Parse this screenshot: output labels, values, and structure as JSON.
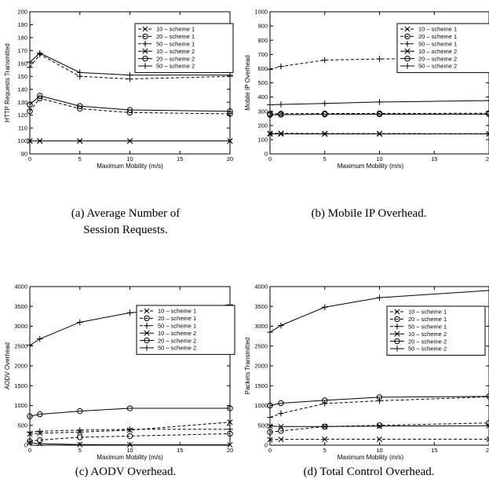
{
  "captions": [
    [
      "(a) Average Number of",
      "Session Requests."
    ],
    [
      "(b) Mobile IP Overhead."
    ],
    [
      "(c) AODV Overhead."
    ],
    [
      "(d) Total Control Overhead."
    ]
  ],
  "chart_data": [
    {
      "type": "line",
      "caption": "(a) Average Number of Session Requests.",
      "xlabel": "Maximum Mobility (m/s)",
      "ylabel": "HTTP Requests Transmitted",
      "xlim": [
        0,
        20
      ],
      "ylim": [
        90,
        200
      ],
      "xticks": [
        0,
        5,
        10,
        15,
        20
      ],
      "yticks": [
        90,
        100,
        110,
        120,
        130,
        140,
        150,
        160,
        170,
        180,
        190,
        200
      ],
      "legend_position": "top-right",
      "x": [
        0,
        1,
        5,
        10,
        20
      ],
      "series": [
        {
          "name": "10 – scheme 1",
          "marker": "x",
          "dash": "dashed",
          "values": [
            100,
            100,
            100,
            100,
            100
          ]
        },
        {
          "name": "20 – scheme 1",
          "marker": "o",
          "dash": "dashed",
          "values": [
            123,
            133,
            125,
            122,
            121
          ]
        },
        {
          "name": "50 – scheme 1",
          "marker": "+",
          "dash": "dashed",
          "values": [
            157,
            167,
            150,
            148,
            150
          ]
        },
        {
          "name": "10 – scheme 2",
          "marker": "x",
          "dash": "solid",
          "values": [
            100,
            100,
            100,
            100,
            100
          ]
        },
        {
          "name": "20 – scheme 2",
          "marker": "o",
          "dash": "solid",
          "values": [
            128,
            135,
            127,
            124,
            123
          ]
        },
        {
          "name": "50 – scheme 2",
          "marker": "+",
          "dash": "solid",
          "values": [
            161,
            168,
            153,
            151,
            151
          ]
        }
      ]
    },
    {
      "type": "line",
      "caption": "(b) Mobile IP Overhead.",
      "xlabel": "Maximum Mobility (m/s)",
      "ylabel": "Mobile IP Overhead",
      "xlim": [
        0,
        20
      ],
      "ylim": [
        0,
        1000
      ],
      "xticks": [
        0,
        5,
        10,
        15,
        20
      ],
      "yticks": [
        0,
        100,
        200,
        300,
        400,
        500,
        600,
        700,
        800,
        900,
        1000
      ],
      "legend_position": "top-right",
      "x": [
        0,
        1,
        5,
        10,
        20
      ],
      "series": [
        {
          "name": "10 – scheme 1",
          "marker": "x",
          "dash": "dashed",
          "values": [
            145,
            145,
            143,
            143,
            142
          ]
        },
        {
          "name": "20 – scheme 1",
          "marker": "o",
          "dash": "dashed",
          "values": [
            282,
            283,
            284,
            285,
            286
          ]
        },
        {
          "name": "50 – scheme 1",
          "marker": "+",
          "dash": "dashed",
          "values": [
            595,
            615,
            660,
            668,
            672
          ]
        },
        {
          "name": "10 – scheme 2",
          "marker": "x",
          "dash": "solid",
          "values": [
            140,
            140,
            140,
            140,
            140
          ]
        },
        {
          "name": "20 – scheme 2",
          "marker": "o",
          "dash": "solid",
          "values": [
            275,
            276,
            278,
            279,
            280
          ]
        },
        {
          "name": "50 – scheme 2",
          "marker": "+",
          "dash": "solid",
          "values": [
            345,
            348,
            355,
            365,
            375
          ]
        }
      ]
    },
    {
      "type": "line",
      "caption": "(c) AODV Overhead.",
      "xlabel": "Maximum Mobility (m/s)",
      "ylabel": "AODV Overhead",
      "xlim": [
        0,
        20
      ],
      "ylim": [
        0,
        4000
      ],
      "xticks": [
        0,
        5,
        10,
        15,
        20
      ],
      "yticks": [
        0,
        500,
        1000,
        1500,
        2000,
        2500,
        3000,
        3500,
        4000
      ],
      "legend_position": "right",
      "x": [
        0,
        1,
        5,
        10,
        20
      ],
      "series": [
        {
          "name": "10 – scheme 1",
          "marker": "x",
          "dash": "dashed",
          "values": [
            280,
            300,
            330,
            380,
            580
          ]
        },
        {
          "name": "20 – scheme 1",
          "marker": "o",
          "dash": "dashed",
          "values": [
            100,
            130,
            200,
            230,
            290
          ]
        },
        {
          "name": "50 – scheme 1",
          "marker": "+",
          "dash": "dashed",
          "values": [
            330,
            350,
            380,
            400,
            400
          ]
        },
        {
          "name": "10 – scheme 2",
          "marker": "x",
          "dash": "solid",
          "values": [
            60,
            40,
            15,
            10,
            10
          ]
        },
        {
          "name": "20 – scheme 2",
          "marker": "o",
          "dash": "solid",
          "values": [
            730,
            780,
            860,
            930,
            930
          ]
        },
        {
          "name": "50 – scheme 2",
          "marker": "+",
          "dash": "solid",
          "values": [
            2520,
            2680,
            3100,
            3340,
            3540
          ]
        }
      ]
    },
    {
      "type": "line",
      "caption": "(d) Total Control Overhead.",
      "xlabel": "Maximum Mobility (m/s)",
      "ylabel": "Packets Transmitted",
      "xlim": [
        0,
        20
      ],
      "ylim": [
        0,
        4000
      ],
      "xticks": [
        0,
        5,
        10,
        15,
        20
      ],
      "yticks": [
        0,
        500,
        1000,
        1500,
        2000,
        2500,
        3000,
        3500,
        4000
      ],
      "legend_position": "right",
      "x": [
        0,
        1,
        5,
        10,
        20
      ],
      "series": [
        {
          "name": "10 – scheme 1",
          "marker": "x",
          "dash": "dashed",
          "values": [
            140,
            145,
            150,
            150,
            150
          ]
        },
        {
          "name": "20 – scheme 1",
          "marker": "o",
          "dash": "dashed",
          "values": [
            330,
            360,
            470,
            500,
            560
          ]
        },
        {
          "name": "50 – scheme 1",
          "marker": "+",
          "dash": "dashed",
          "values": [
            700,
            800,
            1050,
            1120,
            1220
          ]
        },
        {
          "name": "10 – scheme 2",
          "marker": "x",
          "dash": "solid",
          "values": [
            480,
            470,
            470,
            480,
            490
          ]
        },
        {
          "name": "20 – scheme 2",
          "marker": "o",
          "dash": "solid",
          "values": [
            1000,
            1060,
            1130,
            1210,
            1230
          ]
        },
        {
          "name": "50 – scheme 2",
          "marker": "+",
          "dash": "solid",
          "values": [
            2850,
            3020,
            3480,
            3720,
            3900
          ]
        }
      ]
    }
  ]
}
